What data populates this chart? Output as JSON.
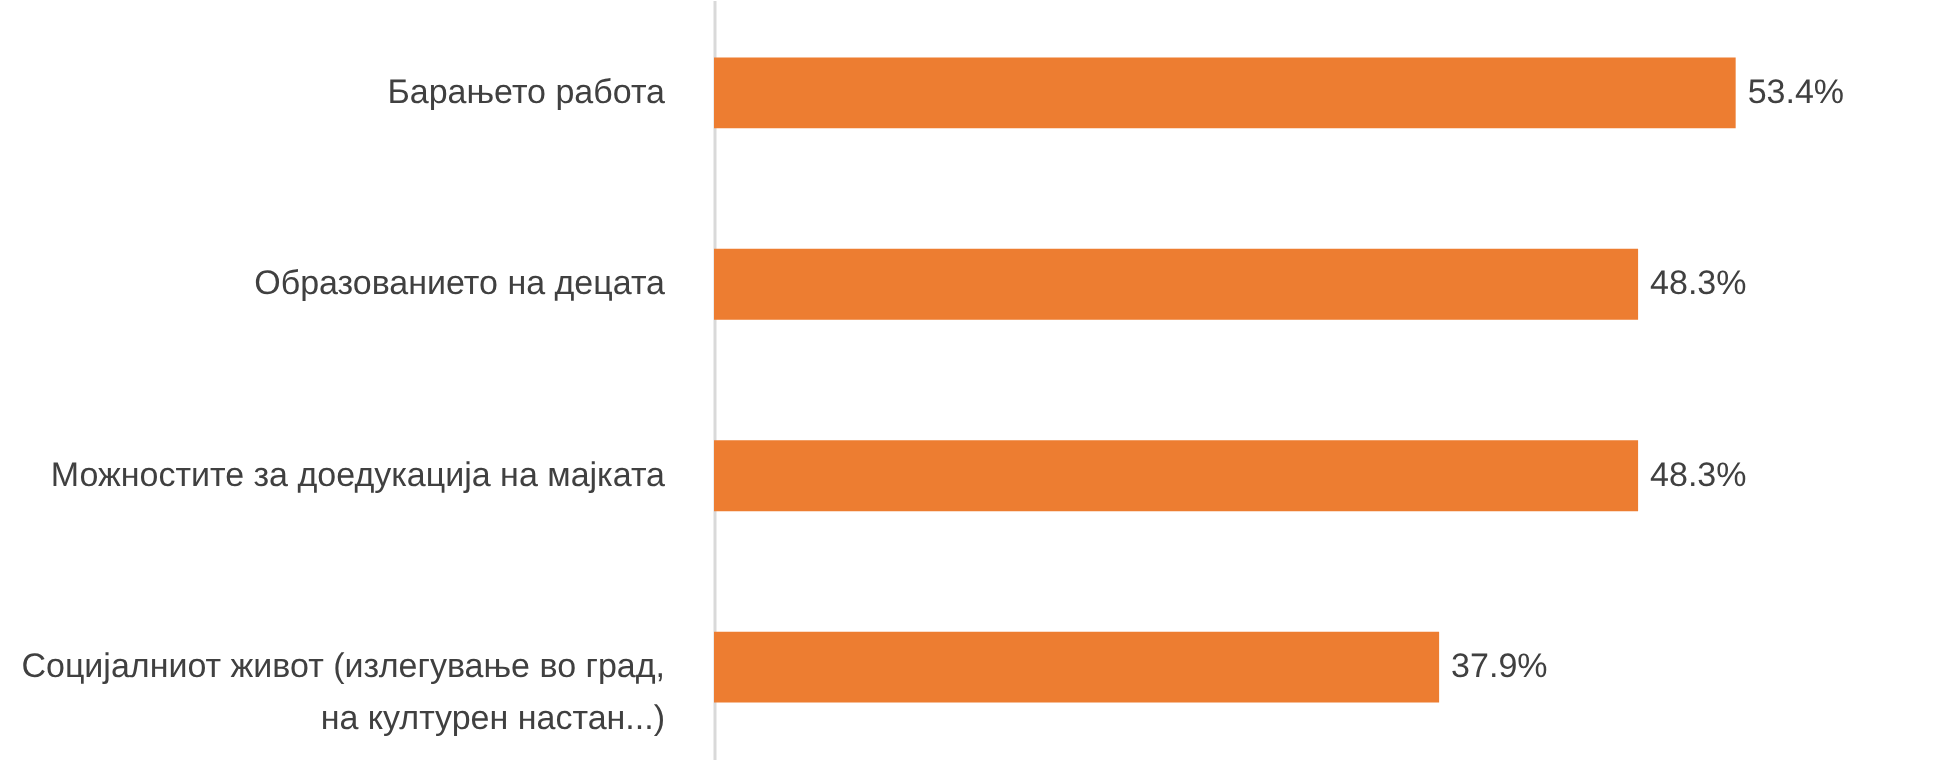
{
  "chart_data": {
    "type": "bar",
    "orientation": "horizontal",
    "categories": [
      "Барањето работа",
      "Образованието на децата",
      "Можностите за доедукација на мајката",
      "Социјалниот живот (излегување во град, на културен настан...)"
    ],
    "values": [
      53.4,
      48.3,
      48.3,
      37.9
    ],
    "color": "#ed7d31",
    "data_labels": true,
    "value_labels": [
      "53.4%",
      "48.3%",
      "48.3%",
      "37.9%"
    ]
  }
}
